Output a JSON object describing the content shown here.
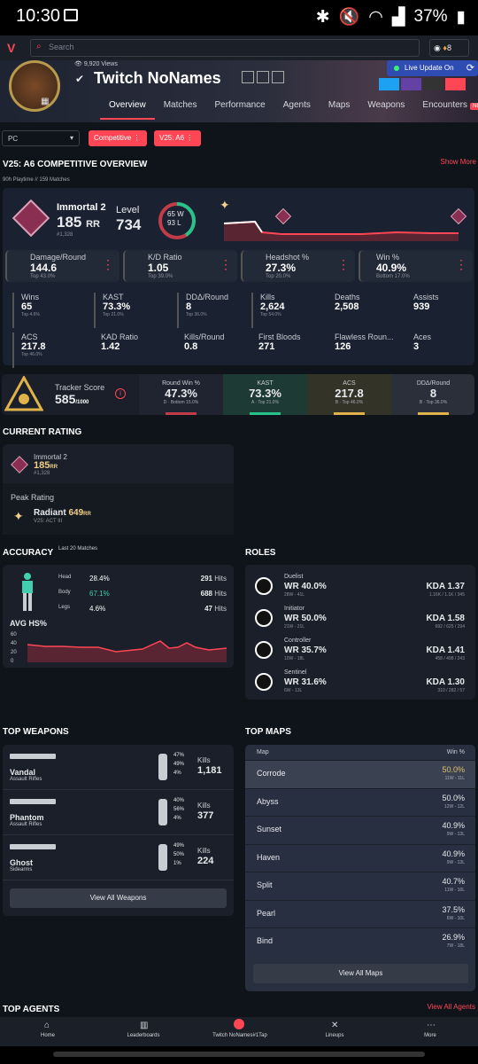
{
  "status": {
    "time": "10:30",
    "battery": "37%"
  },
  "search": {
    "placeholder": "Search"
  },
  "header": {
    "views": "9,920 Views",
    "name": "Twitch NoNames",
    "live": "Live Update On",
    "points": "8"
  },
  "tabs": [
    "Overview",
    "Matches",
    "Performance",
    "Agents",
    "Maps",
    "Weapons",
    "Encounters"
  ],
  "new_badge": "NEW",
  "filters": {
    "platform": "PC",
    "mode": "Competitive",
    "act": "V25: A6"
  },
  "overview": {
    "title": "V25: A6 COMPETITIVE OVERVIEW",
    "show_more": "Show More",
    "playtime": "90h Playtime // 159 Matches"
  },
  "rank": {
    "name": "Immortal 2",
    "rr": "185",
    "rr_unit": "RR",
    "pos": "#1,328",
    "level_label": "Level",
    "level": "734",
    "wins": "65 W",
    "losses": "93 L"
  },
  "key_stats": [
    {
      "label": "Damage/Round",
      "value": "144.6",
      "sub": "Top 43.0%"
    },
    {
      "label": "K/D Ratio",
      "value": "1.05",
      "sub": "Top 39.0%"
    },
    {
      "label": "Headshot %",
      "value": "27.3%",
      "sub": "Top 20.0%"
    },
    {
      "label": "Win %",
      "value": "40.9%",
      "sub": "Bottom 17.0%"
    }
  ],
  "stats": [
    {
      "label": "Wins",
      "value": "65",
      "sub": "Top 4.6%"
    },
    {
      "label": "KAST",
      "value": "73.3%",
      "sub": "Top 21.0%"
    },
    {
      "label": "DDΔ/Round",
      "value": "8",
      "sub": "Top 36.0%"
    },
    {
      "label": "Kills",
      "value": "2,624",
      "sub": "Top 54.0%"
    },
    {
      "label": "Deaths",
      "value": "2,508",
      "sub": ""
    },
    {
      "label": "Assists",
      "value": "939",
      "sub": ""
    },
    {
      "label": "ACS",
      "value": "217.8",
      "sub": "Top 46.0%"
    },
    {
      "label": "KAD Ratio",
      "value": "1.42",
      "sub": ""
    },
    {
      "label": "Kills/Round",
      "value": "0.8",
      "sub": ""
    },
    {
      "label": "First Bloods",
      "value": "271",
      "sub": ""
    },
    {
      "label": "Flawless Roun...",
      "value": "126",
      "sub": ""
    },
    {
      "label": "Aces",
      "value": "3",
      "sub": ""
    }
  ],
  "tracker": {
    "label": "Tracker Score",
    "score": "585",
    "max": "/1000",
    "items": [
      {
        "label": "Round Win %",
        "value": "47.3%",
        "sub": "D · Bottom 15.0%",
        "color": "#c23b48"
      },
      {
        "label": "KAST",
        "value": "73.3%",
        "sub": "A · Top 21.0%",
        "color": "#27c38a"
      },
      {
        "label": "ACS",
        "value": "217.8",
        "sub": "B · Top 46.0%",
        "color": "#e0b34a"
      },
      {
        "label": "DDΔ/Round",
        "value": "8",
        "sub": "B · Top 36.0%",
        "color": "#e0b34a"
      }
    ]
  },
  "current_rating": {
    "title": "CURRENT RATING",
    "rank": "Immortal 2",
    "rr": "185",
    "rr_unit": "RR",
    "pos": "#1,328",
    "peak_label": "Peak Rating",
    "peak_rank": "Radiant",
    "peak_rr": "649",
    "peak_unit": "RR",
    "peak_act": "V25: ACT III"
  },
  "accuracy": {
    "title": "ACCURACY",
    "sub": "Last 20 Matches",
    "avg": "AVG HS%",
    "rows": [
      {
        "part": "Head",
        "pct": "28.4%",
        "hits": "291",
        "unit": "Hits"
      },
      {
        "part": "Body",
        "pct": "67.1%",
        "hits": "688",
        "unit": "Hits"
      },
      {
        "part": "Legs",
        "pct": "4.6%",
        "hits": "47",
        "unit": "Hits"
      }
    ],
    "yticks": [
      "60",
      "40",
      "20",
      "0"
    ]
  },
  "roles": {
    "title": "ROLES",
    "items": [
      {
        "name": "Duelist",
        "wr": "WR 40.0%",
        "wl": "28W - 41L",
        "kda": "KDA 1.37",
        "kdad": "1.16K / 1.1K / 345"
      },
      {
        "name": "Initiator",
        "wr": "WR 50.0%",
        "wl": "21W - 21L",
        "kda": "KDA 1.58",
        "kdad": "692 / 625 / 294"
      },
      {
        "name": "Controller",
        "wr": "WR 35.7%",
        "wl": "10W - 18L",
        "kda": "KDA 1.41",
        "kdad": "458 / 498 / 243"
      },
      {
        "name": "Sentinel",
        "wr": "WR 31.6%",
        "wl": "6W - 13L",
        "kda": "KDA 1.30",
        "kdad": "310 / 282 / 57"
      }
    ]
  },
  "weapons": {
    "title": "TOP WEAPONS",
    "kills_label": "Kills",
    "view_all": "View All Weapons",
    "items": [
      {
        "name": "Vandal",
        "type": "Assault Rifles",
        "p": [
          "47%",
          "49%",
          "4%"
        ],
        "kills": "1,181"
      },
      {
        "name": "Phantom",
        "type": "Assault Rifles",
        "p": [
          "40%",
          "56%",
          "4%"
        ],
        "kills": "377"
      },
      {
        "name": "Ghost",
        "type": "Sidearms",
        "p": [
          "49%",
          "50%",
          "1%"
        ],
        "kills": "224"
      }
    ]
  },
  "maps": {
    "title": "TOP MAPS",
    "col_map": "Map",
    "col_win": "Win %",
    "view_all": "View All Maps",
    "items": [
      {
        "name": "Corrode",
        "win": "50.0%",
        "wl": "11W - 11L"
      },
      {
        "name": "Abyss",
        "win": "50.0%",
        "wl": "12W - 12L"
      },
      {
        "name": "Sunset",
        "win": "40.9%",
        "wl": "9W - 13L"
      },
      {
        "name": "Haven",
        "win": "40.9%",
        "wl": "9W - 13L"
      },
      {
        "name": "Split",
        "win": "40.7%",
        "wl": "11W - 16L"
      },
      {
        "name": "Pearl",
        "win": "37.5%",
        "wl": "6W - 10L"
      },
      {
        "name": "Bind",
        "win": "26.9%",
        "wl": "7W - 18L"
      }
    ]
  },
  "agents": {
    "title": "TOP AGENTS",
    "view_all": "View All Agents"
  },
  "nav": [
    "Home",
    "Leaderboards",
    "Twitch NoNames#1Tap",
    "Lineups",
    "More"
  ]
}
